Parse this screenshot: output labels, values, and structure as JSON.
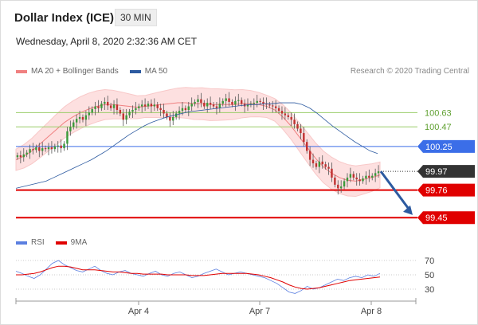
{
  "header": {
    "title": "Dollar Index (ICE)",
    "interval": "30 MIN",
    "datetime": "Wednesday, April 8, 2020 2:32:36 AM CET",
    "credit": "Research © 2020 Trading Central"
  },
  "legend_main": [
    {
      "label": "MA 20 + Bollinger Bands",
      "color": "#f08080"
    },
    {
      "label": "MA 50",
      "color": "#2c5aa0"
    }
  ],
  "legend_rsi": [
    {
      "label": "RSI",
      "color": "#5b7fe0"
    },
    {
      "label": "9MA",
      "color": "#e00000"
    }
  ],
  "chart_data": [
    {
      "type": "candlestick",
      "ylim": [
        99.3,
        101.0
      ],
      "x_ticks": [
        "Apr 4",
        "Apr 7",
        "Apr 8"
      ],
      "price_levels": [
        {
          "value": 100.63,
          "label": "100.63",
          "color": "#9acd68",
          "label_style": "text"
        },
        {
          "value": 100.47,
          "label": "100.47",
          "color": "#9acd68",
          "label_style": "text"
        },
        {
          "value": 100.25,
          "label": "100.25",
          "color": "#3b6ee8",
          "label_style": "box"
        },
        {
          "value": 99.97,
          "label": "99.97",
          "color": "#333333",
          "label_style": "box-dark"
        },
        {
          "value": 99.76,
          "label": "99.76",
          "color": "#e00000",
          "label_style": "box"
        },
        {
          "value": 99.45,
          "label": "99.45",
          "color": "#e00000",
          "label_style": "box"
        }
      ],
      "close_series": [
        100.15,
        100.13,
        100.16,
        100.18,
        100.22,
        100.21,
        100.24,
        100.2,
        100.23,
        100.22,
        100.24,
        100.22,
        100.25,
        100.26,
        100.23,
        100.28,
        100.42,
        100.47,
        100.52,
        100.56,
        100.58,
        100.55,
        100.6,
        100.63,
        100.67,
        100.7,
        100.68,
        100.73,
        100.75,
        100.71,
        100.68,
        100.72,
        100.66,
        100.62,
        100.55,
        100.6,
        100.64,
        100.66,
        100.68,
        100.7,
        100.72,
        100.7,
        100.73,
        100.7,
        100.72,
        100.68,
        100.66,
        100.62,
        100.58,
        100.54,
        100.58,
        100.62,
        100.65,
        100.68,
        100.66,
        100.7,
        100.73,
        100.75,
        100.78,
        100.74,
        100.7,
        100.74,
        100.72,
        100.7,
        100.68,
        100.73,
        100.76,
        100.79,
        100.75,
        100.72,
        100.76,
        100.77,
        100.73,
        100.7,
        100.72,
        100.73,
        100.74,
        100.76,
        100.75,
        100.73,
        100.72,
        100.71,
        100.7,
        100.68,
        100.65,
        100.62,
        100.6,
        100.58,
        100.55,
        100.5,
        100.45,
        100.4,
        100.3,
        100.2,
        100.1,
        100.06,
        100.02,
        100.08,
        100.05,
        100.02,
        100.0,
        99.9,
        99.82,
        99.78,
        99.8,
        99.86,
        99.9,
        99.94,
        99.9,
        99.88,
        99.86,
        99.89,
        99.92,
        99.9,
        99.92,
        99.95,
        99.97
      ],
      "ma50": [
        99.78,
        99.8,
        99.82,
        99.84,
        99.86,
        99.9,
        99.94,
        99.98,
        100.02,
        100.06,
        100.1,
        100.15,
        100.2,
        100.26,
        100.32,
        100.38,
        100.43,
        100.48,
        100.52,
        100.55,
        100.58,
        100.6,
        100.62,
        100.64,
        100.65,
        100.66,
        100.67,
        100.68,
        100.69,
        100.7,
        100.71,
        100.72,
        100.72,
        100.73,
        100.73,
        100.74,
        100.74,
        100.74,
        100.72,
        100.68,
        100.62,
        100.55,
        100.48,
        100.42,
        100.36,
        100.3,
        100.25,
        100.2,
        100.17
      ],
      "ma20": [
        100.1,
        100.14,
        100.2,
        100.28,
        100.36,
        100.44,
        100.52,
        100.58,
        100.63,
        100.67,
        100.7,
        100.72,
        100.72,
        100.71,
        100.7,
        100.69,
        100.7,
        100.71,
        100.72,
        100.73,
        100.74,
        100.74,
        100.73,
        100.73,
        100.72,
        100.72,
        100.72,
        100.72,
        100.73,
        100.73,
        100.72,
        100.7,
        100.66,
        100.58,
        100.48,
        100.36,
        100.24,
        100.12,
        100.02,
        99.95,
        99.9,
        99.87,
        99.86,
        99.88,
        99.9,
        99.93
      ]
    },
    {
      "type": "line",
      "y_ticks": [
        70,
        50,
        30
      ],
      "ylim": [
        20,
        80
      ],
      "series": [
        {
          "name": "RSI",
          "color": "#5b7fe0",
          "values": [
            55,
            52,
            48,
            45,
            50,
            58,
            66,
            70,
            64,
            60,
            56,
            54,
            58,
            62,
            56,
            52,
            50,
            54,
            56,
            52,
            50,
            48,
            52,
            55,
            50,
            48,
            52,
            54,
            50,
            46,
            48,
            52,
            55,
            58,
            54,
            50,
            52,
            54,
            52,
            50,
            48,
            46,
            42,
            38,
            32,
            26,
            24,
            28,
            34,
            30,
            32,
            36,
            40,
            44,
            42,
            46,
            48,
            46,
            50,
            48,
            52
          ]
        },
        {
          "name": "9MA",
          "color": "#e00000",
          "values": [
            50,
            50,
            51,
            52,
            54,
            57,
            60,
            62,
            62,
            61,
            59,
            57,
            57,
            57,
            56,
            55,
            54,
            54,
            53,
            52,
            52,
            51,
            51,
            51,
            51,
            50,
            50,
            50,
            50,
            49,
            49,
            49,
            50,
            51,
            52,
            52,
            52,
            52,
            52,
            51,
            50,
            48,
            46,
            43,
            40,
            36,
            33,
            31,
            30,
            31,
            32,
            34,
            36,
            38,
            40,
            42,
            43,
            44,
            45,
            46,
            47
          ]
        }
      ]
    }
  ]
}
